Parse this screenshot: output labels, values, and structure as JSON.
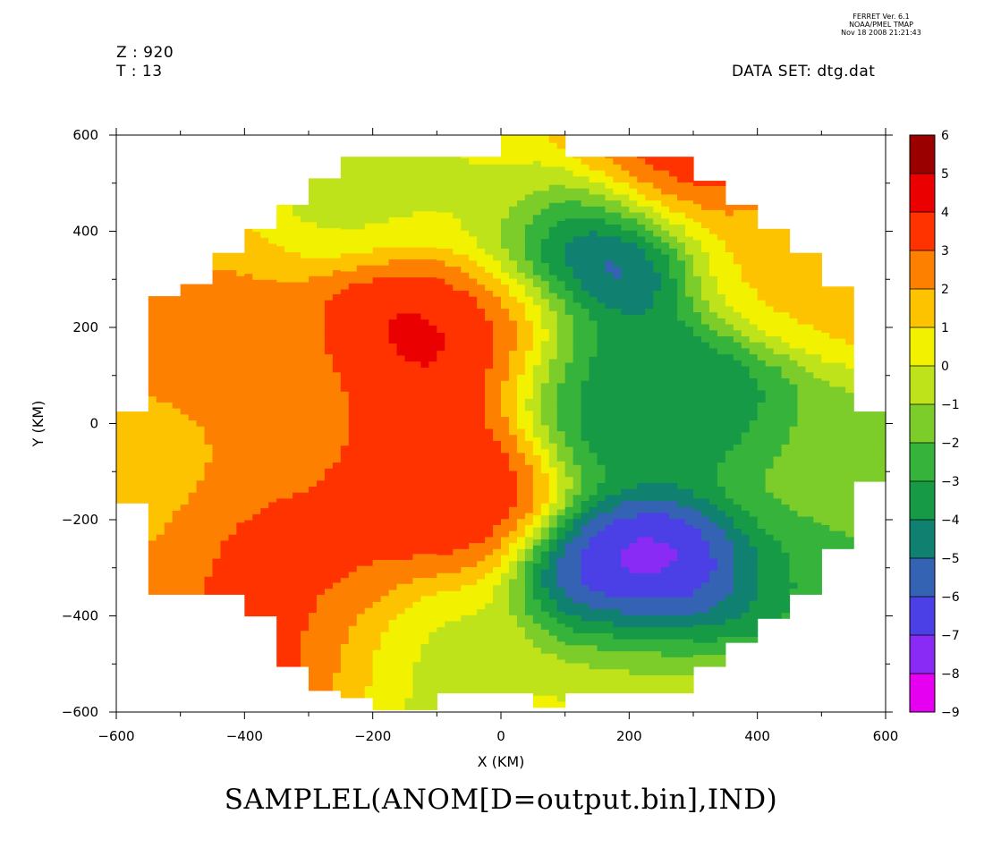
{
  "header": {
    "z_line": "Z : 920",
    "t_line": "T : 13",
    "dataset_line": "DATA SET: dtg.dat",
    "stamp": [
      "FERRET Ver. 6.1",
      "NOAA/PMEL TMAP",
      "Nov 18 2008 21:21:43"
    ]
  },
  "caption": "SAMPLEL(ANOM[D=output.bin],IND)",
  "chart_data": {
    "type": "heatmap",
    "title": "SAMPLEL(ANOM[D=output.bin],IND)",
    "xlabel": "X (KM)",
    "ylabel": "Y (KM)",
    "xlim": [
      -600,
      600
    ],
    "ylim": [
      -600,
      600
    ],
    "x_ticks": [
      -600,
      -400,
      -200,
      0,
      200,
      400,
      600
    ],
    "y_ticks": [
      -600,
      -400,
      -200,
      0,
      200,
      400,
      600
    ],
    "x_tick_labels": [
      "−600",
      "−400",
      "−200",
      "0",
      "200",
      "400",
      "600"
    ],
    "y_tick_labels": [
      "−600",
      "−400",
      "−200",
      "0",
      "200",
      "400",
      "600"
    ],
    "grid": false,
    "colorbar": {
      "position": "right",
      "levels": [
        -9,
        -8,
        -7,
        -6,
        -5,
        -4,
        -3,
        -2,
        -1,
        0,
        1,
        2,
        3,
        4,
        5,
        6
      ],
      "labels": [
        "−9",
        "−8",
        "−7",
        "−6",
        "−5",
        "−4",
        "−3",
        "−2",
        "−1",
        "0",
        "1",
        "2",
        "3",
        "4",
        "5",
        "6"
      ],
      "colors": [
        "#e600f2",
        "#8a2bf5",
        "#4b3fe6",
        "#3563b4",
        "#108070",
        "#179a46",
        "#36b33a",
        "#7ccc2a",
        "#bfe31a",
        "#f2f200",
        "#fdc200",
        "#fd8000",
        "#ff3300",
        "#ea0000",
        "#9b0000"
      ]
    },
    "domain_mask": {
      "x_edges": [
        -600,
        -550,
        -500,
        -450,
        -400,
        -350,
        -300,
        -250,
        -200,
        -150,
        -100,
        -50,
        0,
        50,
        100,
        150,
        200,
        250,
        300,
        350,
        400,
        450,
        500,
        550,
        600
      ],
      "y_edges_top": [
        25,
        265,
        290,
        355,
        405,
        455,
        510,
        555,
        555,
        555,
        555,
        555,
        600,
        600,
        555,
        555,
        555,
        555,
        505,
        455,
        405,
        355,
        285,
        25
      ],
      "y_edges_bottom": [
        -165,
        -355,
        -355,
        -355,
        -400,
        -505,
        -555,
        -570,
        -595,
        -595,
        -560,
        -560,
        -560,
        -590,
        -560,
        -560,
        -560,
        -560,
        -505,
        -455,
        -405,
        -355,
        -260,
        -120
      ]
    },
    "anomaly_centers": [
      {
        "x": 130,
        "y": 360,
        "value": -7.5,
        "kind": "min"
      },
      {
        "x": 260,
        "y": -330,
        "value": -8.5,
        "kind": "min"
      },
      {
        "x": 280,
        "y": 40,
        "value": -4.5,
        "kind": "min"
      },
      {
        "x": 150,
        "y": 110,
        "value": -4.0,
        "kind": "min"
      },
      {
        "x": -100,
        "y": 150,
        "value": 4.5,
        "kind": "max"
      },
      {
        "x": -30,
        "y": 220,
        "value": 4.2,
        "kind": "max"
      },
      {
        "x": -120,
        "y": -80,
        "value": 4.3,
        "kind": "max"
      },
      {
        "x": -330,
        "y": -260,
        "value": 3.3,
        "kind": "max"
      },
      {
        "x": -300,
        "y": -520,
        "value": 4.3,
        "kind": "max"
      },
      {
        "x": 250,
        "y": 540,
        "value": 4.2,
        "kind": "max"
      },
      {
        "x": -250,
        "y": -10,
        "value": 2.5,
        "kind": "max"
      },
      {
        "x": -450,
        "y": 130,
        "value": 2.3,
        "kind": "max"
      },
      {
        "x": -180,
        "y": 520,
        "value": -0.6,
        "kind": "min"
      },
      {
        "x": 500,
        "y": -100,
        "value": -1.8,
        "kind": "min"
      },
      {
        "x": 480,
        "y": -350,
        "value": -2.8,
        "kind": "min"
      },
      {
        "x": 450,
        "y": 330,
        "value": 1.3,
        "kind": "max"
      },
      {
        "x": -600,
        "y": -80,
        "value": 1.6,
        "kind": "max"
      },
      {
        "x": 0,
        "y": 470,
        "value": 0.4,
        "kind": "max"
      },
      {
        "x": -170,
        "y": -540,
        "value": -1.2,
        "kind": "min"
      },
      {
        "x": 250,
        "y": -520,
        "value": -0.2,
        "kind": "min"
      }
    ]
  }
}
